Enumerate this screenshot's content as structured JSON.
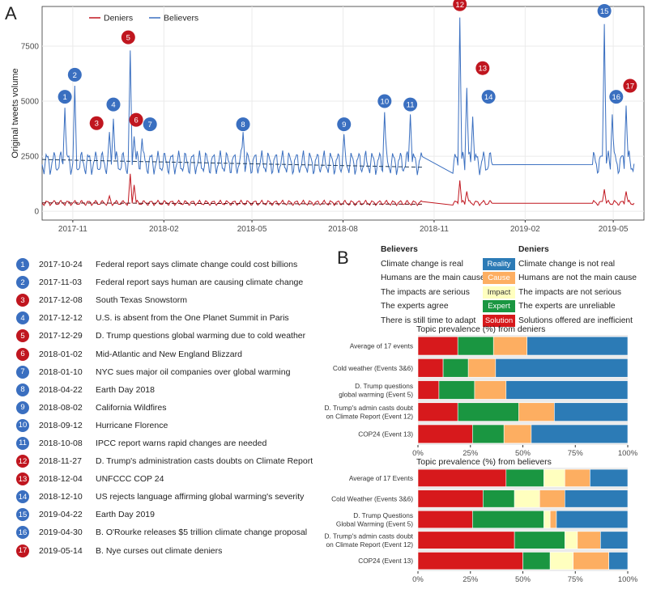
{
  "panel_labels": {
    "a": "A",
    "b": "B"
  },
  "chart_data": [
    {
      "type": "line",
      "panel": "A",
      "ylabel": "Original tweets volume",
      "xlabel": "",
      "legend": [
        {
          "name": "Deniers",
          "color": "#b2182b"
        },
        {
          "name": "Believers",
          "color": "#2166ac"
        }
      ],
      "ylim": [
        -400,
        9300
      ],
      "yticks": [
        0,
        2500,
        5000,
        7500
      ],
      "x_ticks": [
        {
          "date": "2017-11-01",
          "label": "2017-11"
        },
        {
          "date": "2018-02-01",
          "label": "2018-02"
        },
        {
          "date": "2018-05-01",
          "label": "2018-05"
        },
        {
          "date": "2018-08-01",
          "label": "2018-08"
        },
        {
          "date": "2018-11-01",
          "label": "2018-11"
        },
        {
          "date": "2019-02-01",
          "label": "2019-02"
        },
        {
          "date": "2019-05-01",
          "label": "2019-05"
        }
      ],
      "xlim": [
        "2017-10-01",
        "2019-06-01"
      ],
      "segments": [
        {
          "start": "2017-10-01",
          "end": "2018-10-20"
        },
        {
          "start": "2018-11-20",
          "end": "2018-12-30"
        },
        {
          "start": "2019-04-10",
          "end": "2019-05-22"
        }
      ],
      "believers_baseline": 2200,
      "deniers_baseline": 380,
      "believers_spikes": [
        {
          "date": "2017-10-24",
          "value": 4700
        },
        {
          "date": "2017-11-03",
          "value": 5700
        },
        {
          "date": "2017-12-08",
          "value": 3600
        },
        {
          "date": "2017-12-12",
          "value": 4200
        },
        {
          "date": "2017-12-29",
          "value": 7300
        },
        {
          "date": "2018-01-02",
          "value": 3400
        },
        {
          "date": "2018-01-10",
          "value": 3300
        },
        {
          "date": "2018-04-22",
          "value": 3600
        },
        {
          "date": "2018-08-02",
          "value": 3500
        },
        {
          "date": "2018-09-12",
          "value": 4500
        },
        {
          "date": "2018-10-08",
          "value": 4400
        },
        {
          "date": "2018-11-27",
          "value": 8800
        },
        {
          "date": "2018-12-04",
          "value": 5600
        },
        {
          "date": "2018-12-10",
          "value": 4300
        },
        {
          "date": "2019-04-22",
          "value": 8500
        },
        {
          "date": "2019-04-30",
          "value": 4400
        },
        {
          "date": "2019-05-14",
          "value": 4800
        }
      ],
      "deniers_spikes": [
        {
          "date": "2017-12-08",
          "value": 700
        },
        {
          "date": "2017-12-29",
          "value": 1700
        },
        {
          "date": "2018-01-02",
          "value": 1200
        },
        {
          "date": "2018-11-27",
          "value": 1400
        },
        {
          "date": "2018-12-04",
          "value": 900
        },
        {
          "date": "2019-04-22",
          "value": 1000
        },
        {
          "date": "2019-05-14",
          "value": 900
        }
      ],
      "event_markers": [
        {
          "num": "1",
          "side": "believers",
          "date": "2017-10-24",
          "at": 5200
        },
        {
          "num": "2",
          "side": "believers",
          "date": "2017-11-03",
          "at": 6200
        },
        {
          "num": "3",
          "side": "deniers",
          "date": "2017-11-25",
          "at": 4000
        },
        {
          "num": "4",
          "side": "believers",
          "date": "2017-12-12",
          "at": 4850
        },
        {
          "num": "5",
          "side": "deniers",
          "date": "2017-12-27",
          "at": 7900
        },
        {
          "num": "6",
          "side": "deniers",
          "date": "2018-01-04",
          "at": 4150
        },
        {
          "num": "7",
          "side": "believers",
          "date": "2018-01-18",
          "at": 3950
        },
        {
          "num": "8",
          "side": "believers",
          "date": "2018-04-22",
          "at": 3950
        },
        {
          "num": "9",
          "side": "believers",
          "date": "2018-08-02",
          "at": 3950
        },
        {
          "num": "10",
          "side": "believers",
          "date": "2018-09-12",
          "at": 5000
        },
        {
          "num": "11",
          "side": "believers",
          "date": "2018-10-08",
          "at": 4850
        },
        {
          "num": "12",
          "side": "deniers",
          "date": "2018-11-27",
          "at": 9400
        },
        {
          "num": "13",
          "side": "deniers",
          "date": "2018-12-20",
          "at": 6500
        },
        {
          "num": "14",
          "side": "believers",
          "date": "2018-12-26",
          "at": 5200
        },
        {
          "num": "15",
          "side": "believers",
          "date": "2019-04-22",
          "at": 9100
        },
        {
          "num": "16",
          "side": "believers",
          "date": "2019-05-04",
          "at": 5200
        },
        {
          "num": "17",
          "side": "deniers",
          "date": "2019-05-18",
          "at": 5700
        }
      ]
    },
    {
      "type": "bar",
      "stacked": true,
      "orientation": "horizontal",
      "title": "Topic prevalence  (%) from deniers",
      "categories": [
        "Average of 17 events",
        "Cold weather (Events 3&6)",
        "D. Trump questions\nglobal warming (Event 5)",
        "D. Trump's admin casts doubt\non Climate Report (Event 12)",
        "COP24 (Event 13)"
      ],
      "series": [
        {
          "name": "Solution",
          "color": "#d7191c",
          "values": [
            19,
            12,
            10,
            19,
            26
          ]
        },
        {
          "name": "Expert",
          "color": "#1a9641",
          "values": [
            17,
            12,
            17,
            29,
            15
          ]
        },
        {
          "name": "Impact",
          "color": "#ffffbf",
          "values": [
            0,
            0,
            0,
            0,
            0
          ]
        },
        {
          "name": "Cause",
          "color": "#fdae61",
          "values": [
            16,
            13,
            15,
            17,
            13
          ]
        },
        {
          "name": "Reality",
          "color": "#2c7bb6",
          "values": [
            48,
            63,
            58,
            35,
            46
          ]
        }
      ],
      "xticks": [
        "0%",
        "25%",
        "50%",
        "75%",
        "100%"
      ]
    },
    {
      "type": "bar",
      "stacked": true,
      "orientation": "horizontal",
      "title": "Topic prevalence  (%) from believers",
      "categories": [
        "Average of 17 Events",
        "Cold Weather (Events 3&6)",
        "D. Trump Questions\nGlobal Warming (Event 5)",
        "D. Trump's admin casts doubt\non Climate Report (Event 12)",
        "COP24 (Event 13)"
      ],
      "series": [
        {
          "name": "Solution",
          "color": "#d7191c",
          "values": [
            42,
            31,
            26,
            46,
            50
          ]
        },
        {
          "name": "Expert",
          "color": "#1a9641",
          "values": [
            18,
            15,
            34,
            24,
            13
          ]
        },
        {
          "name": "Impact",
          "color": "#ffffbf",
          "values": [
            10,
            12,
            3,
            6,
            11
          ]
        },
        {
          "name": "Cause",
          "color": "#fdae61",
          "values": [
            12,
            12,
            3,
            11,
            17
          ]
        },
        {
          "name": "Reality",
          "color": "#2c7bb6",
          "values": [
            18,
            30,
            34,
            13,
            9
          ]
        }
      ],
      "xticks": [
        "0%",
        "25%",
        "50%",
        "75%",
        "100%"
      ]
    }
  ],
  "events": [
    {
      "num": "1",
      "side": "believers",
      "date": "2017-10-24",
      "text": "Federal report says climate change could cost billions"
    },
    {
      "num": "2",
      "side": "believers",
      "date": "2017-11-03",
      "text": "Federal report says human are causing climate change"
    },
    {
      "num": "3",
      "side": "deniers",
      "date": "2017-12-08",
      "text": "South Texas Snowstorm"
    },
    {
      "num": "4",
      "side": "believers",
      "date": "2017-12-12",
      "text": "U.S. is absent from the One Planet Summit in Paris"
    },
    {
      "num": "5",
      "side": "deniers",
      "date": "2017-12-29",
      "text": "D. Trump questions global warming due to cold weather"
    },
    {
      "num": "6",
      "side": "deniers",
      "date": "2018-01-02",
      "text": "Mid-Atlantic and New England Blizzard"
    },
    {
      "num": "7",
      "side": "believers",
      "date": "2018-01-10",
      "text": "NYC sues major oil companies over global warming"
    },
    {
      "num": "8",
      "side": "believers",
      "date": "2018-04-22",
      "text": "Earth Day 2018"
    },
    {
      "num": "9",
      "side": "believers",
      "date": "2018-08-02",
      "text": "California Wildfires"
    },
    {
      "num": "10",
      "side": "believers",
      "date": "2018-09-12",
      "text": "Hurricane Florence"
    },
    {
      "num": "11",
      "side": "believers",
      "date": "2018-10-08",
      "text": "IPCC report warns rapid changes are needed"
    },
    {
      "num": "12",
      "side": "deniers",
      "date": "2018-11-27",
      "text": "D. Trump's administration casts doubts on Climate Report"
    },
    {
      "num": "13",
      "side": "deniers",
      "date": "2018-12-04",
      "text": "UNFCCC COP 24"
    },
    {
      "num": "14",
      "side": "believers",
      "date": "2018-12-10",
      "text": "US rejects language affirming global warming's severity"
    },
    {
      "num": "15",
      "side": "believers",
      "date": "2019-04-22",
      "text": "Earth Day 2019"
    },
    {
      "num": "16",
      "side": "believers",
      "date": "2019-04-30",
      "text": "B. O'Rourke releases $5 trillion climate change proposal"
    },
    {
      "num": "17",
      "side": "deniers",
      "date": "2019-05-14",
      "text": "B. Nye curses out climate deniers"
    }
  ],
  "topic_legend": {
    "believers_header": "Believers",
    "deniers_header": "Deniers",
    "rows": [
      {
        "believers": "Climate change is real",
        "tag": "Reality",
        "color": "#2c7bb6",
        "tag_text_color": "#ffffff",
        "deniers": "Climate change is not real"
      },
      {
        "believers": "Humans are the main cause",
        "tag": "Cause",
        "color": "#fdae61",
        "tag_text_color": "#ffffff",
        "deniers": "Humans are not the main cause"
      },
      {
        "believers": "The impacts are serious",
        "tag": "Impact",
        "color": "#ffffbf",
        "tag_text_color": "#333333",
        "deniers": "The impacts are not serious"
      },
      {
        "believers": "The experts agree",
        "tag": "Expert",
        "color": "#1a9641",
        "tag_text_color": "#ffffff",
        "deniers": "The experts are unreliable"
      },
      {
        "believers": "There is still time to adapt",
        "tag": "Solution",
        "color": "#d7191c",
        "tag_text_color": "#ffffff",
        "deniers": "Solutions offered are inefficient"
      }
    ]
  },
  "colors": {
    "believers": "#3a6fc0",
    "deniers": "#c0161f"
  }
}
